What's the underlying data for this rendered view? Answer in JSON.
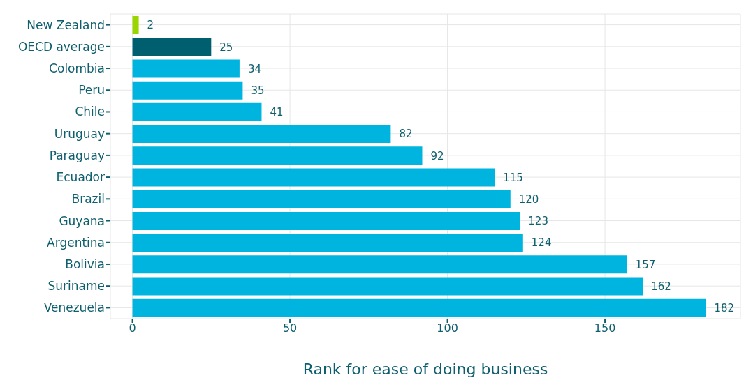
{
  "chart_data": {
    "type": "bar",
    "orientation": "horizontal",
    "xlabel": "Rank for ease of doing business",
    "categories": [
      "New Zealand",
      "OECD average",
      "Colombia",
      "Peru",
      "Chile",
      "Uruguay",
      "Paraguay",
      "Ecuador",
      "Brazil",
      "Guyana",
      "Argentina",
      "Bolivia",
      "Suriname",
      "Venezuela"
    ],
    "values": [
      2,
      25,
      34,
      35,
      41,
      82,
      92,
      115,
      120,
      123,
      124,
      157,
      162,
      182
    ],
    "colors": [
      "#9bd500",
      "#005f6e",
      "#00b4e0",
      "#00b4e0",
      "#00b4e0",
      "#00b4e0",
      "#00b4e0",
      "#00b4e0",
      "#00b4e0",
      "#00b4e0",
      "#00b4e0",
      "#00b4e0",
      "#00b4e0",
      "#00b4e0"
    ],
    "data_labels": true,
    "xlim": [
      -7,
      193
    ],
    "xticks": [
      0,
      50,
      100,
      150
    ],
    "grid": true
  }
}
